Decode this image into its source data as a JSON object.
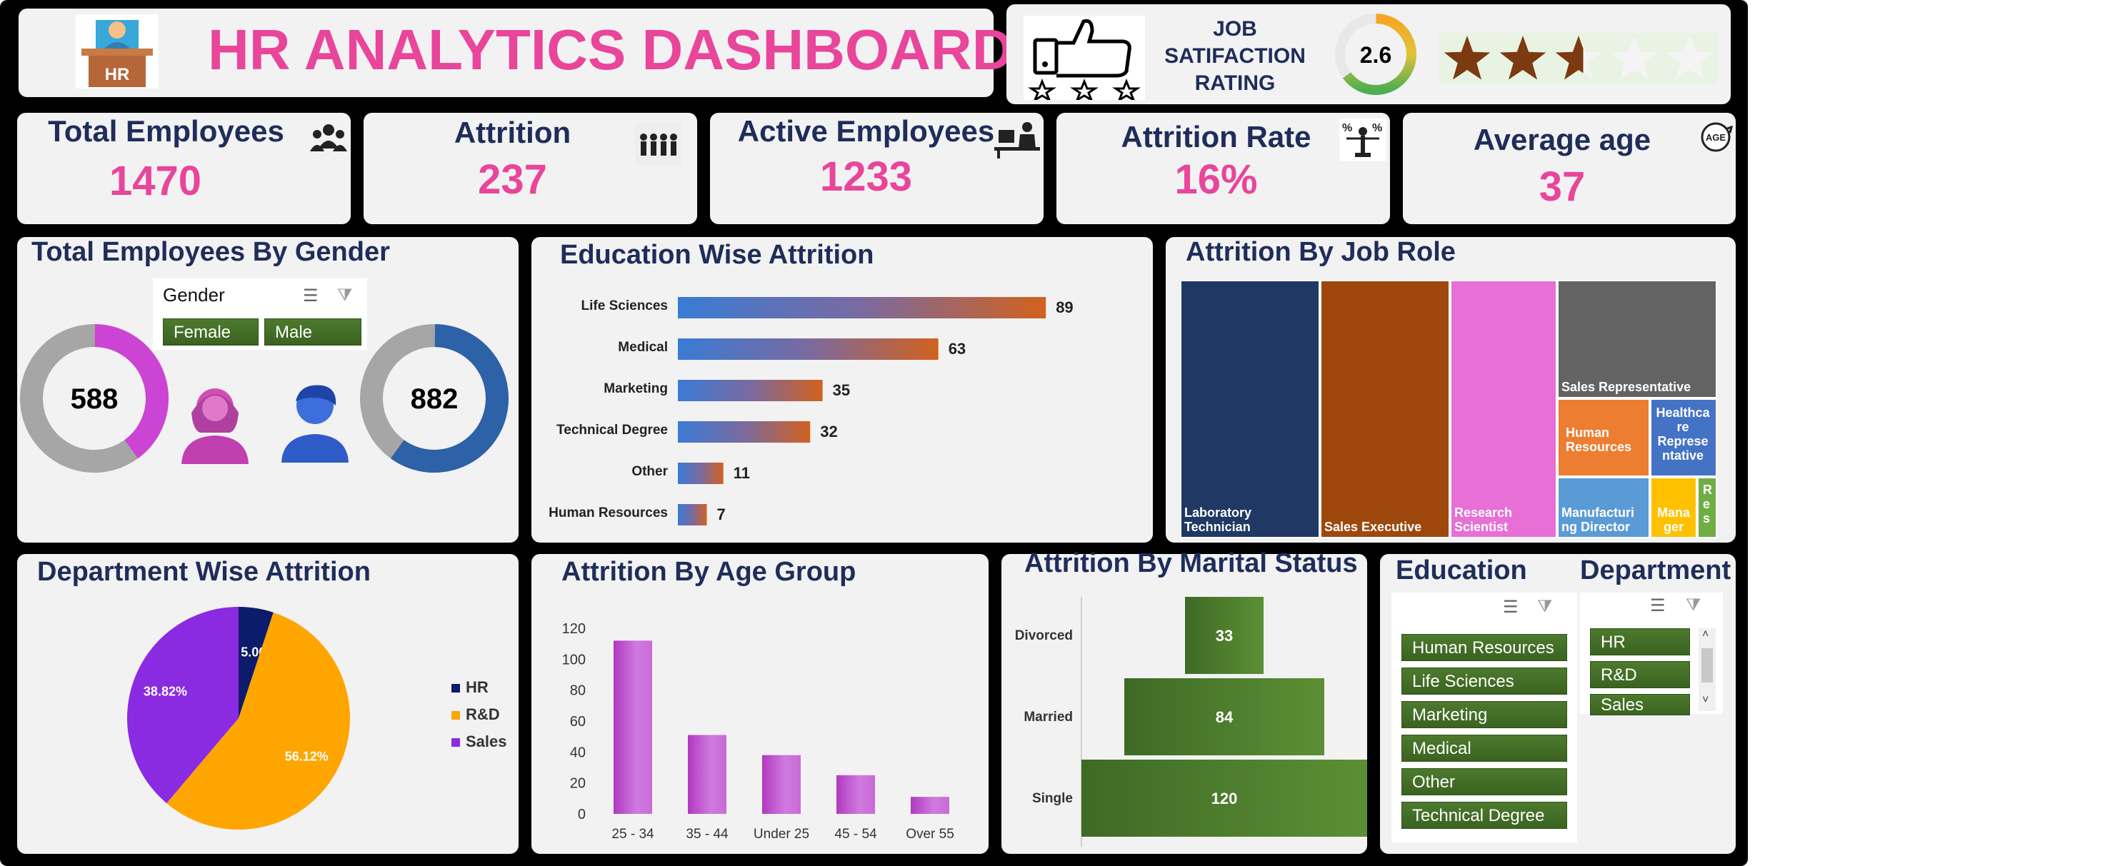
{
  "header": {
    "title": "HR ANALYTICS DASHBOARD",
    "logo_text": "HR"
  },
  "rating": {
    "label_line1": "JOB",
    "label_line2": "SATIFACTION",
    "label_line3": "RATING",
    "value": "2.6",
    "stars_filled": 2.6,
    "stars_total": 5,
    "gauge_fraction": 0.65
  },
  "kpis": {
    "total_employees": {
      "label": "Total Employees",
      "value": "1470"
    },
    "attrition": {
      "label": "Attrition",
      "value": "237"
    },
    "active_employees": {
      "label": "Active Employees",
      "value": "1233"
    },
    "attrition_rate": {
      "label": "Attrition Rate",
      "value": "16%"
    },
    "average_age": {
      "label": "Average age",
      "value": "37",
      "icon_text": "AGE"
    }
  },
  "gender": {
    "title": "Total Employees By Gender",
    "slicer_title": "Gender",
    "options": [
      "Female",
      "Male"
    ],
    "female_value": "588",
    "male_value": "882",
    "female_fraction": 0.4,
    "male_fraction": 0.6
  },
  "education_attrition": {
    "title": "Education Wise Attrition",
    "chart_data": {
      "type": "bar",
      "orientation": "horizontal",
      "categories": [
        "Life Sciences",
        "Medical",
        "Marketing",
        "Technical Degree",
        "Other",
        "Human Resources"
      ],
      "values": [
        89,
        63,
        35,
        32,
        11,
        7
      ]
    }
  },
  "job_role": {
    "title": "Attrition By Job Role",
    "chart_data": {
      "type": "treemap",
      "items": [
        {
          "label": "Laboratory Technician",
          "color": "#1f3864"
        },
        {
          "label": "Sales Executive",
          "color": "#9e480e"
        },
        {
          "label": "Research Scientist",
          "color": "#e76fd6"
        },
        {
          "label": "Sales Representative",
          "color": "#636363"
        },
        {
          "label": "Human Resources",
          "color": "#ed7d31"
        },
        {
          "label": "Healthcare Representative",
          "color": "#4472c4"
        },
        {
          "label": "Manufacturing Director",
          "color": "#5b9bd5"
        },
        {
          "label": "Manager",
          "color": "#ffc000"
        },
        {
          "label": "Res",
          "color": "#70ad47"
        }
      ],
      "labels_shown": [
        "Laboratory Technician",
        "Sales Executive",
        "Research Scientist",
        "Sales Representative",
        "Human Resources",
        "Healthca re Represe ntative",
        "Manufacturi ng Director",
        "Mana ger",
        "R e s"
      ]
    }
  },
  "department_attrition": {
    "title": "Department Wise Attrition",
    "chart_data": {
      "type": "pie",
      "categories": [
        "HR",
        "R&D",
        "Sales"
      ],
      "values": [
        5.06,
        56.12,
        38.82
      ],
      "data_labels": [
        "5.06%",
        "56.12%",
        "38.82%"
      ],
      "colors": [
        "#0d1b6b",
        "#ffa500",
        "#8a2be2"
      ],
      "legend": "right"
    }
  },
  "age_group": {
    "title": "Attrition By Age Group",
    "chart_data": {
      "type": "bar",
      "categories": [
        "25 - 34",
        "35 - 44",
        "Under 25",
        "45 - 54",
        "Over 55"
      ],
      "values": [
        112,
        51,
        38,
        25,
        11
      ],
      "ylim": [
        0,
        120
      ],
      "yticks": [
        "0",
        "20",
        "40",
        "60",
        "80",
        "100",
        "120"
      ]
    }
  },
  "marital": {
    "title": "Attrition By Marital Status",
    "chart_data": {
      "type": "bar",
      "orientation": "funnel",
      "categories": [
        "Divorced",
        "Married",
        "Single"
      ],
      "values": [
        33,
        84,
        120
      ]
    }
  },
  "education_slicer": {
    "title": "Education",
    "items": [
      "Human Resources",
      "Life Sciences",
      "Marketing",
      "Medical",
      "Other",
      "Technical Degree"
    ]
  },
  "department_slicer": {
    "title": "Department",
    "items": [
      "HR",
      "R&D",
      "Sales"
    ]
  }
}
